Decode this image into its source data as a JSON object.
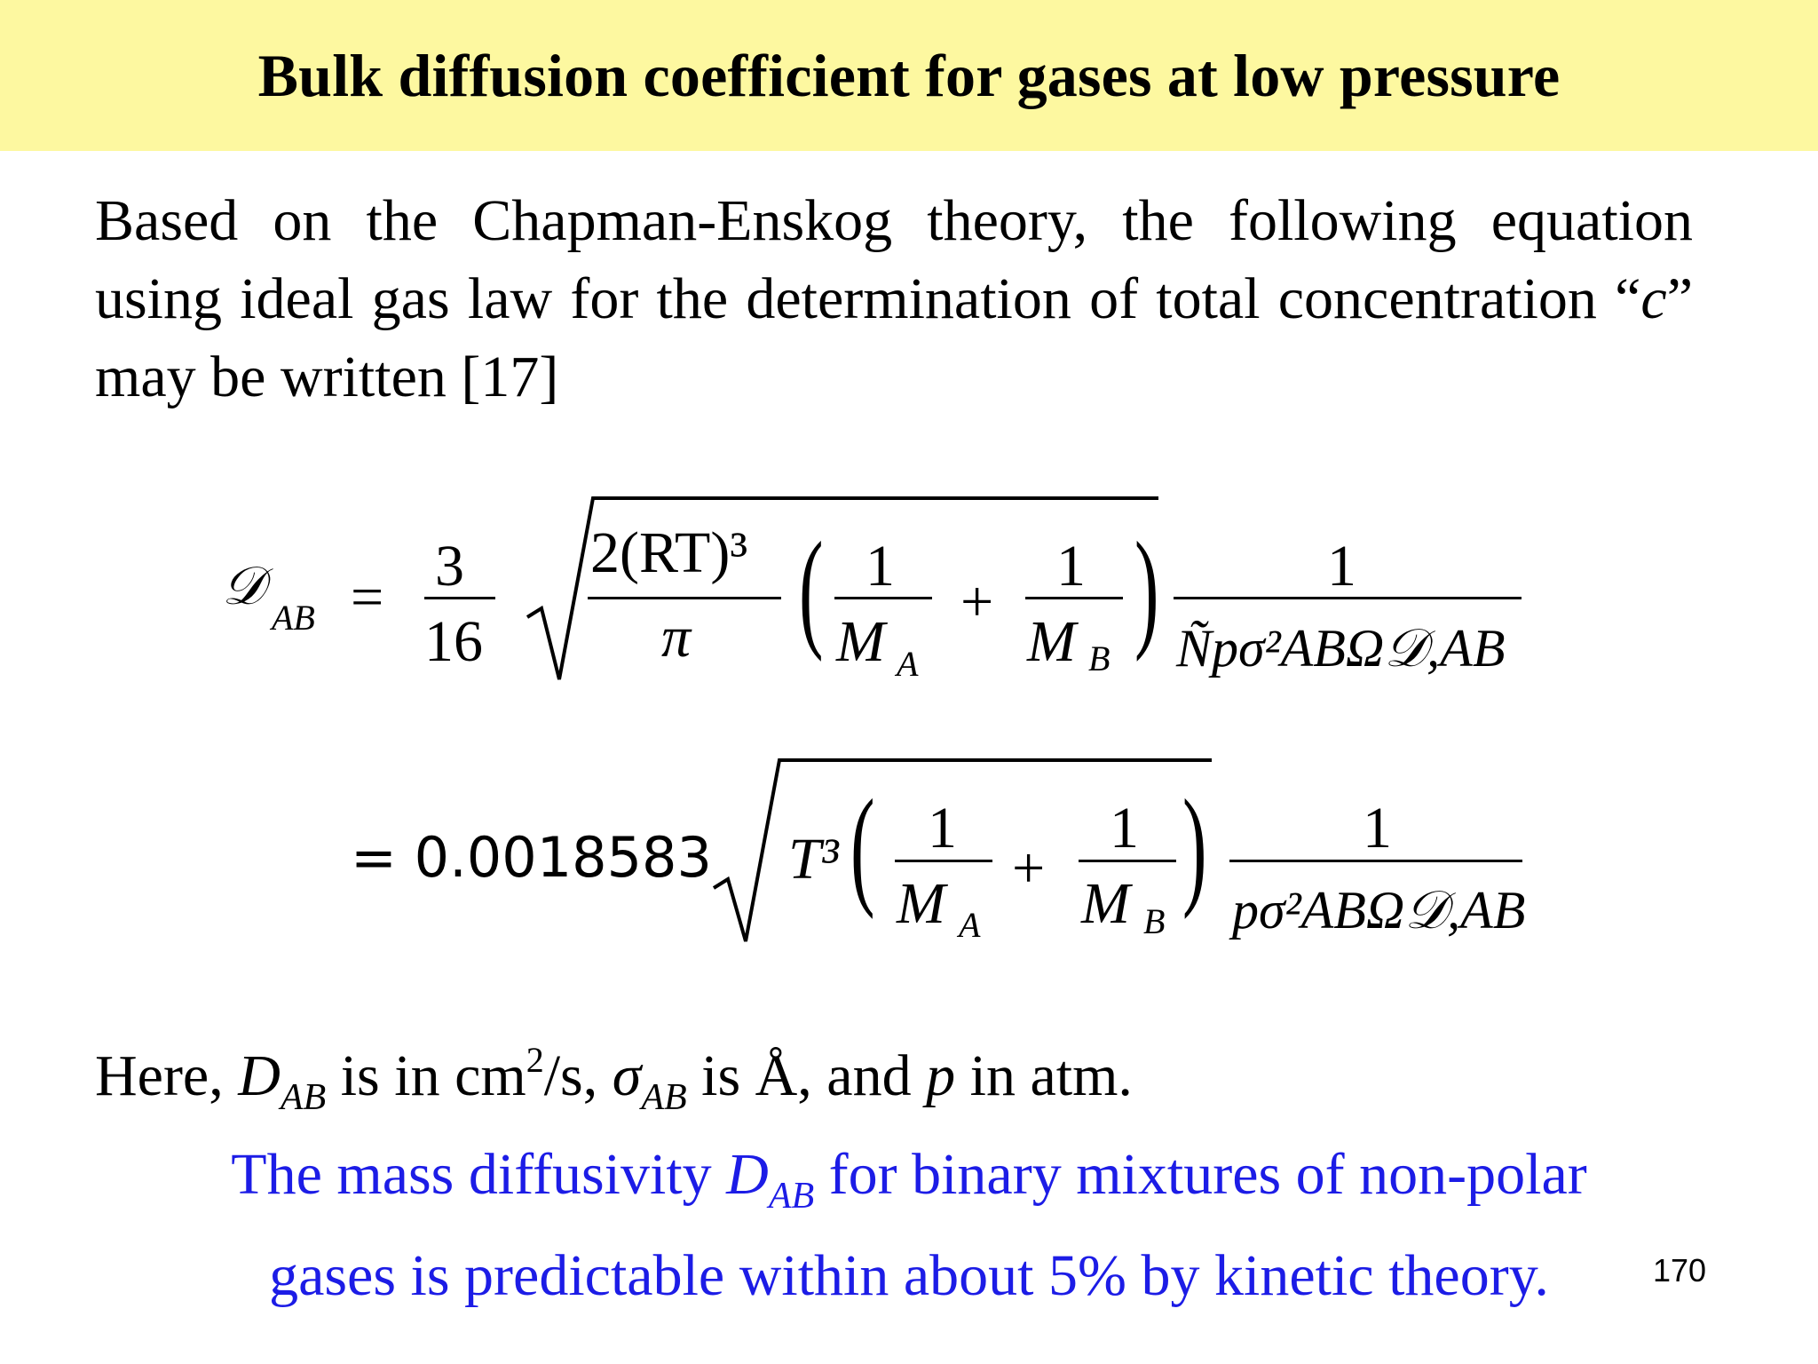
{
  "slide": {
    "title": "Bulk diffusion coefficient for gases at low pressure",
    "intro": {
      "part1": "Based on the Chapman-Enskog theory, the following equation using ideal gas law for the determination of total concentration “",
      "var_c": "c",
      "part2": "” may be written [17]"
    },
    "equation": {
      "lhs_symbol": "𝒟",
      "lhs_sub": "AB",
      "equals": "=",
      "coef_num": "3",
      "coef_den": "16",
      "radicand_num": "2(RT)³",
      "radicand_den": "π",
      "one": "1",
      "ma": "M",
      "ma_sub": "A",
      "mb": "M",
      "mb_sub": "B",
      "plus": "+",
      "den1": "Ñpσ²ABΩ𝒟,AB",
      "line2_const": "= 0.0018583",
      "line2_t": "T³",
      "den2": "pσ²ABΩ𝒟,AB"
    },
    "units_note": {
      "here": "Here, ",
      "d": "D",
      "d_sub": "AB",
      "is_in": " is in cm",
      "sup": "2",
      "per_s": "/s, ",
      "sigma": "σ",
      "sigma_sub": "AB",
      "is_a": " is Å, and ",
      "p": "p",
      "in_atm": " in atm."
    },
    "blue_note": {
      "line1_a": "The mass diffusivity ",
      "d": "D",
      "d_sub": "AB",
      "line1_b": " for binary mixtures of non-polar",
      "line2": "gases is predictable within about 5% by kinetic theory."
    },
    "page_number": "170",
    "colors": {
      "title_bg": "#fdf8a0",
      "blue_text": "#1c1ce6"
    }
  }
}
